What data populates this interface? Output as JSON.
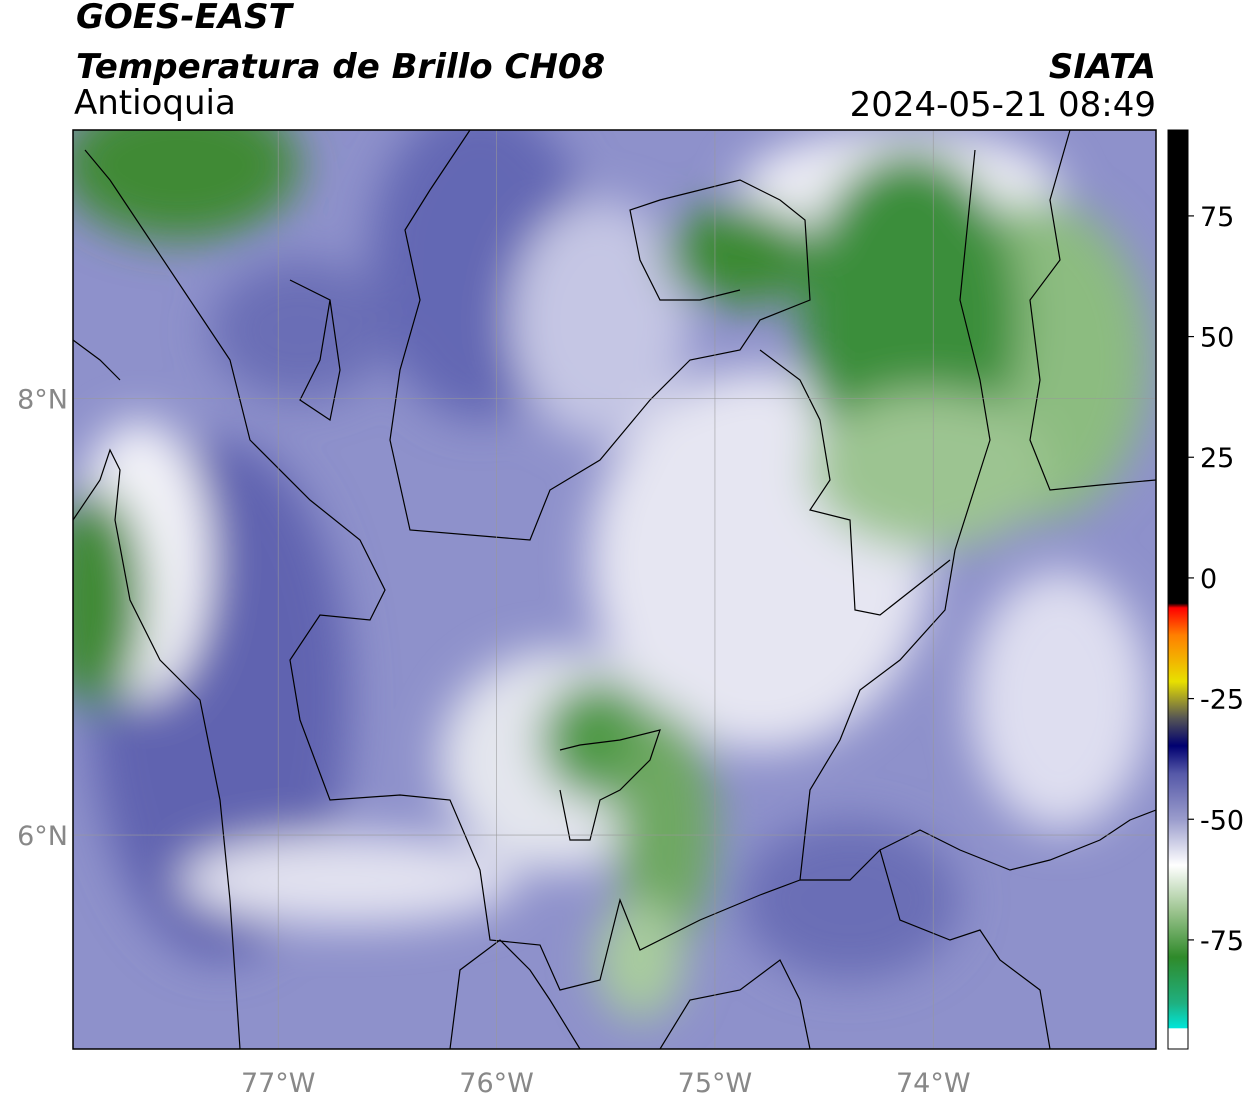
{
  "header": {
    "title": "GOES-EAST",
    "subtitle": "Temperatura de Brillo CH08",
    "region": "Antioquia",
    "source": "SIATA",
    "datetime": "2024-05-21 08:49"
  },
  "map": {
    "xlim": [
      -77.94,
      -72.98
    ],
    "ylim": [
      5.02,
      9.23
    ],
    "xticks": [
      {
        "value": -77,
        "label": "77°W"
      },
      {
        "value": -76,
        "label": "76°W"
      },
      {
        "value": -75,
        "label": "75°W"
      },
      {
        "value": -74,
        "label": "74°W"
      }
    ],
    "yticks": [
      {
        "value": 8,
        "label": "8°N"
      },
      {
        "value": 6,
        "label": "6°N"
      }
    ],
    "grid": true
  },
  "colorbar": {
    "lim": [
      -97.6,
      92.8
    ],
    "ticks": [
      -75,
      -50,
      -25,
      0,
      25,
      50,
      75
    ]
  }
}
